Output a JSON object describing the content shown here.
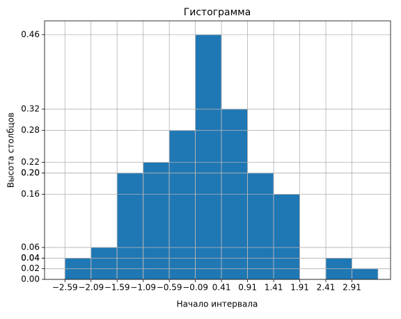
{
  "chart_data": {
    "type": "histogram",
    "title": "Гистограмма",
    "x_label": "Начало интервала",
    "y_label": "Высота столбцов",
    "bins": [
      -2.59,
      -2.09,
      -1.59,
      -1.09,
      -0.59,
      -0.09,
      0.41,
      0.91,
      1.41,
      1.91,
      2.41,
      2.91,
      3.41
    ],
    "values": [
      0.04,
      0.06,
      0.2,
      0.22,
      0.28,
      0.46,
      0.32,
      0.2,
      0.16,
      0.0,
      0.04,
      0.02
    ],
    "color": "#1f77b4",
    "edge_color": "#c8c8c8",
    "xlim": [
      -2.98,
      3.65
    ],
    "ylim": [
      0,
      0.486
    ],
    "xticks": [
      {
        "value": -2.59,
        "label": "−2.59"
      },
      {
        "value": -2.09,
        "label": "−2.09"
      },
      {
        "value": -1.59,
        "label": "−1.59"
      },
      {
        "value": -1.09,
        "label": "−1.09"
      },
      {
        "value": -0.59,
        "label": "−0.59"
      },
      {
        "value": -0.09,
        "label": "−0.09"
      },
      0.41,
      0.91,
      1.41,
      1.91,
      2.41,
      2.91
    ],
    "yticks": [
      {
        "value": 0.04,
        "label": "0.04"
      },
      0.06,
      {
        "value": 0.2,
        "label": "0.20"
      },
      0.22,
      0.28,
      0.46,
      0.32,
      {
        "value": 0.2,
        "label": "0.20"
      },
      0.16,
      {
        "value": 0,
        "label": "0.00"
      },
      {
        "value": 0.04,
        "label": "0.04"
      },
      0.02
    ],
    "grid": true
  }
}
